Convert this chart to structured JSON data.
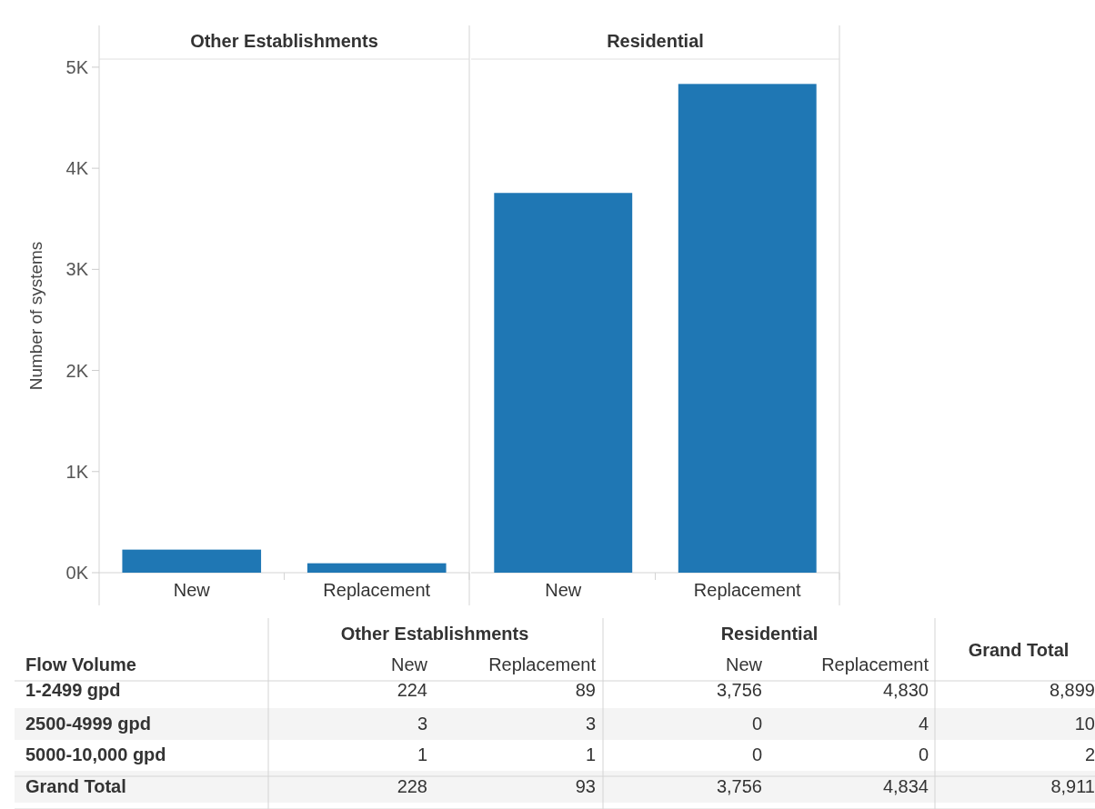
{
  "chart_data": [
    {
      "type": "bar",
      "title": "Other Establishments",
      "ylabel": "Number of systems",
      "categories": [
        "New",
        "Replacement"
      ],
      "values": [
        228,
        93
      ],
      "color": "#1f77b4",
      "ylim": [
        0,
        5080
      ],
      "yticks": [
        {
          "value": 0,
          "label": "0K"
        },
        {
          "value": 1000,
          "label": "1K"
        },
        {
          "value": 2000,
          "label": "2K"
        },
        {
          "value": 3000,
          "label": "3K"
        },
        {
          "value": 4000,
          "label": "4K"
        },
        {
          "value": 5000,
          "label": "5K"
        }
      ]
    },
    {
      "type": "bar",
      "title": "Residential",
      "categories": [
        "New",
        "Replacement"
      ],
      "values": [
        3756,
        4834
      ],
      "color": "#1f77b4",
      "ylim": [
        0,
        5080
      ],
      "tick_labels": "x"
    },
    {
      "type": "other",
      "annotations": [
        "Other Establishments",
        "Residential",
        "Grand Total",
        "Flow Volume",
        "New",
        "Replacement",
        "New",
        "Replacement",
        "1-2499 gpd",
        "224",
        "89",
        "3,756",
        "4,830",
        "8,899",
        "2500-4999 gpd",
        "3",
        "3",
        "0",
        "4",
        "10",
        "5000-10,000 gpd",
        "1",
        "1",
        "0",
        "0",
        "2",
        "Grand Total",
        "228",
        "93",
        "3,756",
        "4,834",
        "8,911"
      ]
    }
  ]
}
